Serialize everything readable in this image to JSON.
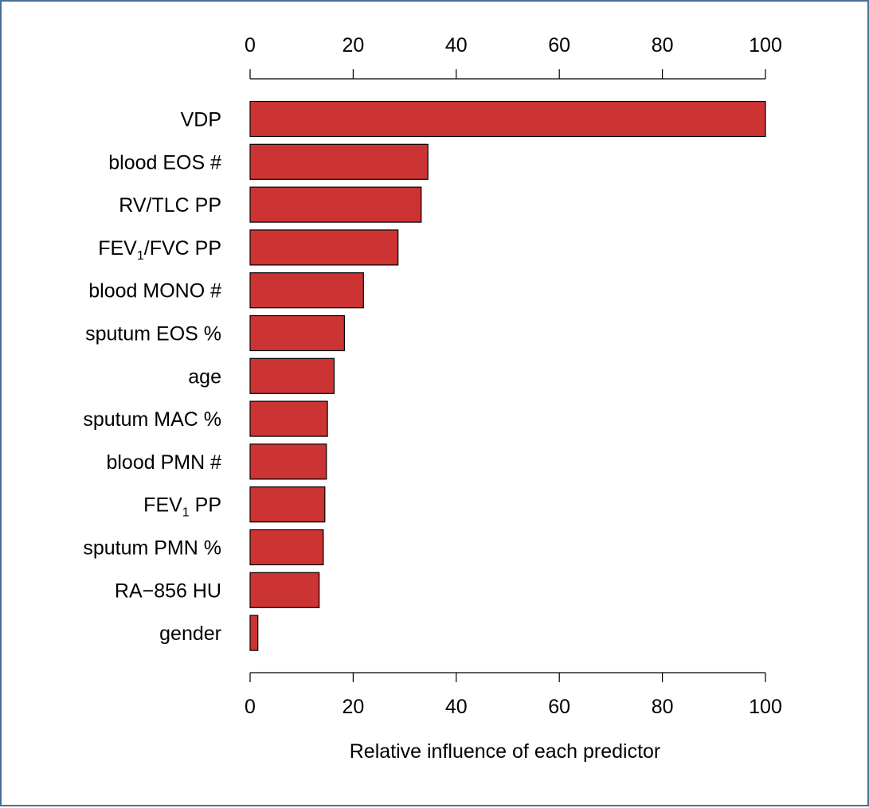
{
  "chart_data": {
    "type": "bar",
    "orientation": "horizontal",
    "bar_color": "#cc3333",
    "bar_edge_color": "#000000",
    "categories": [
      {
        "label": "VDP",
        "sub": "",
        "rest": ""
      },
      {
        "label": "blood EOS #",
        "sub": "",
        "rest": ""
      },
      {
        "label": "RV/TLC PP",
        "sub": "",
        "rest": ""
      },
      {
        "label": "FEV",
        "sub": "1",
        "rest": "/FVC PP"
      },
      {
        "label": "blood MONO #",
        "sub": "",
        "rest": ""
      },
      {
        "label": "sputum EOS %",
        "sub": "",
        "rest": ""
      },
      {
        "label": "age",
        "sub": "",
        "rest": ""
      },
      {
        "label": "sputum MAC %",
        "sub": "",
        "rest": ""
      },
      {
        "label": "blood PMN #",
        "sub": "",
        "rest": ""
      },
      {
        "label": "FEV",
        "sub": "1",
        "rest": " PP"
      },
      {
        "label": "sputum PMN %",
        "sub": "",
        "rest": ""
      },
      {
        "label": "RA−856 HU",
        "sub": "",
        "rest": ""
      },
      {
        "label": "gender",
        "sub": "",
        "rest": ""
      }
    ],
    "values": [
      100,
      34.5,
      33.2,
      28.7,
      22.0,
      18.3,
      16.3,
      15.0,
      14.8,
      14.5,
      14.2,
      13.4,
      1.5
    ],
    "xlim": [
      0,
      100
    ],
    "xticks": [
      0,
      20,
      40,
      60,
      80,
      100
    ],
    "xlabel": "Relative influence of each predictor",
    "axes": [
      "top",
      "bottom"
    ],
    "grid": false,
    "legend": "none",
    "border_color": "#4a6f95"
  }
}
